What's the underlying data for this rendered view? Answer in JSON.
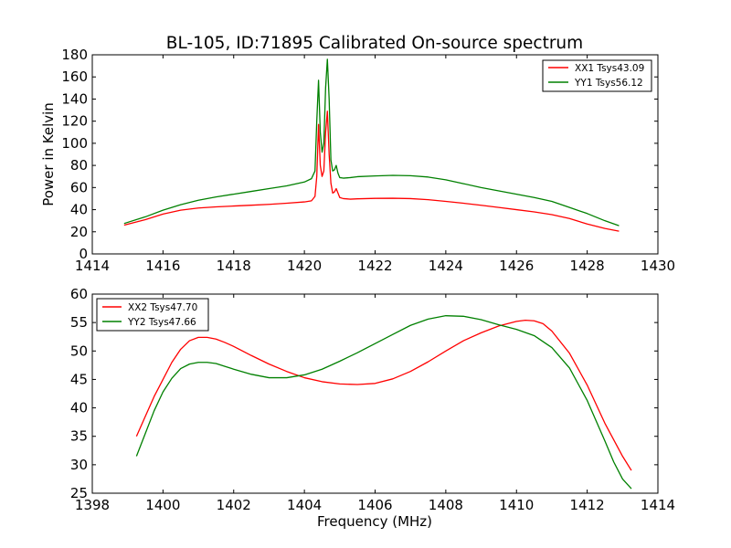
{
  "chart_data": [
    {
      "type": "line",
      "title": "BL-105, ID:71895 Calibrated On-source spectrum",
      "xlabel": "",
      "ylabel": "Power in Kelvin",
      "xlim": [
        1414,
        1430
      ],
      "ylim": [
        0,
        180
      ],
      "xticks": [
        1414,
        1416,
        1418,
        1420,
        1422,
        1424,
        1426,
        1428,
        1430
      ],
      "yticks": [
        0,
        20,
        40,
        60,
        80,
        100,
        120,
        140,
        160,
        180
      ],
      "grid": false,
      "legend": "top-right",
      "series": [
        {
          "name": "XX1 Tsys43.09",
          "color": "#ff0000",
          "x": [
            1414.9,
            1415.5,
            1416.0,
            1416.5,
            1417.0,
            1417.5,
            1418.0,
            1418.5,
            1419.0,
            1419.5,
            1420.0,
            1420.2,
            1420.3,
            1420.35,
            1420.4,
            1420.45,
            1420.5,
            1420.55,
            1420.6,
            1420.65,
            1420.7,
            1420.75,
            1420.8,
            1420.85,
            1420.9,
            1420.95,
            1421.0,
            1421.1,
            1421.3,
            1421.5,
            1422.0,
            1422.5,
            1423.0,
            1423.5,
            1424.0,
            1424.5,
            1425.0,
            1425.5,
            1426.0,
            1426.5,
            1427.0,
            1427.5,
            1428.0,
            1428.5,
            1428.9
          ],
          "y": [
            26,
            31,
            36,
            39.5,
            41.5,
            42.5,
            43.3,
            44,
            44.8,
            45.8,
            47,
            48,
            52,
            70,
            117,
            80,
            70,
            75,
            110,
            129,
            90,
            64,
            55,
            56,
            59,
            55,
            51,
            50,
            49.5,
            49.8,
            50.2,
            50.3,
            50,
            49,
            47.5,
            45.8,
            44,
            42,
            40,
            38,
            35.5,
            32,
            27,
            23,
            20.5
          ]
        },
        {
          "name": "YY1 Tsys56.12",
          "color": "#008000",
          "x": [
            1414.9,
            1415.5,
            1416.0,
            1416.5,
            1417.0,
            1417.5,
            1418.0,
            1418.5,
            1419.0,
            1419.5,
            1420.0,
            1420.2,
            1420.3,
            1420.35,
            1420.4,
            1420.45,
            1420.5,
            1420.55,
            1420.6,
            1420.65,
            1420.7,
            1420.75,
            1420.8,
            1420.85,
            1420.9,
            1420.95,
            1421.0,
            1421.1,
            1421.3,
            1421.5,
            1422.0,
            1422.5,
            1423.0,
            1423.5,
            1424.0,
            1424.5,
            1425.0,
            1425.5,
            1426.0,
            1426.5,
            1427.0,
            1427.5,
            1428.0,
            1428.5,
            1428.9
          ],
          "y": [
            27.5,
            33.5,
            39.5,
            44.5,
            48.5,
            51.5,
            54,
            56.5,
            59,
            61.5,
            65,
            68,
            75,
            120,
            157,
            110,
            92,
            100,
            150,
            176,
            140,
            85,
            75,
            76,
            80,
            73,
            69,
            68.5,
            69,
            69.8,
            70.5,
            71,
            70.7,
            69.5,
            67,
            63.5,
            60,
            57,
            54,
            51,
            47.5,
            42,
            36.5,
            30,
            25.5
          ]
        }
      ]
    },
    {
      "type": "line",
      "title": "",
      "xlabel": "Frequency (MHz)",
      "ylabel": "",
      "xlim": [
        1398,
        1414
      ],
      "ylim": [
        25,
        60
      ],
      "xticks": [
        1398,
        1400,
        1402,
        1404,
        1406,
        1408,
        1410,
        1412,
        1414
      ],
      "yticks": [
        25,
        30,
        35,
        40,
        45,
        50,
        55,
        60
      ],
      "grid": false,
      "legend": "top-left",
      "series": [
        {
          "name": "XX2 Tsys47.70",
          "color": "#ff0000",
          "x": [
            1399.25,
            1399.5,
            1399.75,
            1400.0,
            1400.25,
            1400.5,
            1400.75,
            1401.0,
            1401.25,
            1401.5,
            1401.75,
            1402.0,
            1402.5,
            1403.0,
            1403.5,
            1404.0,
            1404.5,
            1405.0,
            1405.5,
            1406.0,
            1406.5,
            1407.0,
            1407.5,
            1408.0,
            1408.5,
            1409.0,
            1409.5,
            1410.0,
            1410.25,
            1410.5,
            1410.75,
            1411.0,
            1411.5,
            1412.0,
            1412.5,
            1413.0,
            1413.25
          ],
          "y": [
            35,
            38.5,
            42,
            45,
            48,
            50.3,
            51.8,
            52.4,
            52.4,
            52.1,
            51.5,
            50.8,
            49.2,
            47.7,
            46.4,
            45.3,
            44.6,
            44.2,
            44.1,
            44.3,
            45.1,
            46.4,
            48.1,
            50,
            51.8,
            53.2,
            54.4,
            55.2,
            55.4,
            55.3,
            54.8,
            53.5,
            49.6,
            44,
            37.3,
            31.5,
            29
          ]
        },
        {
          "name": "YY2 Tsys47.66",
          "color": "#008000",
          "x": [
            1399.25,
            1399.5,
            1399.75,
            1400.0,
            1400.25,
            1400.5,
            1400.75,
            1401.0,
            1401.25,
            1401.5,
            1401.75,
            1402.0,
            1402.5,
            1403.0,
            1403.5,
            1404.0,
            1404.5,
            1405.0,
            1405.5,
            1406.0,
            1406.5,
            1407.0,
            1407.5,
            1408.0,
            1408.5,
            1409.0,
            1409.5,
            1410.0,
            1410.5,
            1411.0,
            1411.5,
            1412.0,
            1412.5,
            1412.75,
            1413.0,
            1413.25
          ],
          "y": [
            31.5,
            35.5,
            39.5,
            42.8,
            45.2,
            46.9,
            47.7,
            48,
            48,
            47.8,
            47.3,
            46.8,
            45.9,
            45.3,
            45.3,
            45.8,
            46.8,
            48.2,
            49.7,
            51.3,
            52.9,
            54.5,
            55.6,
            56.2,
            56.1,
            55.5,
            54.6,
            53.8,
            52.7,
            50.6,
            47,
            41.3,
            34.2,
            30.5,
            27.5,
            25.8
          ]
        }
      ]
    }
  ]
}
